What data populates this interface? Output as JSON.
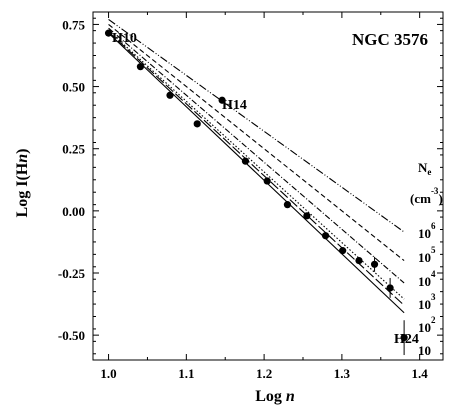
{
  "chart_data": {
    "type": "scatter",
    "title": "NGC 3576",
    "xlabel": "Log",
    "xlabel_italic": "n",
    "ylabel": "Log I(H",
    "ylabel_italic": "n",
    "ylabel_close": ")",
    "xlim": [
      0.98,
      1.43
    ],
    "ylim": [
      -0.6,
      0.8
    ],
    "grid": false,
    "x_ticks": [
      {
        "value": 1.0,
        "label": "1.0"
      },
      {
        "value": 1.1,
        "label": "1.1"
      },
      {
        "value": 1.2,
        "label": "1.2"
      },
      {
        "value": 1.3,
        "label": "1.3"
      },
      {
        "value": 1.4,
        "label": "1.4"
      }
    ],
    "y_ticks": [
      {
        "value": 0.75,
        "label": "0.75"
      },
      {
        "value": 0.5,
        "label": "0.50"
      },
      {
        "value": 0.25,
        "label": "0.25"
      },
      {
        "value": 0.0,
        "label": "0.00"
      },
      {
        "value": -0.25,
        "label": "-0.25"
      },
      {
        "value": -0.5,
        "label": "-0.50"
      }
    ],
    "points": [
      {
        "x": 1.0,
        "y": 0.715,
        "err": 0.0
      },
      {
        "x": 1.041,
        "y": 0.58,
        "err": 0.0
      },
      {
        "x": 1.079,
        "y": 0.465,
        "err": 0.0
      },
      {
        "x": 1.114,
        "y": 0.35,
        "err": 0.0
      },
      {
        "x": 1.146,
        "y": 0.445,
        "err": 0.0
      },
      {
        "x": 1.176,
        "y": 0.2,
        "err": 0.0
      },
      {
        "x": 1.204,
        "y": 0.12,
        "err": 0.0
      },
      {
        "x": 1.23,
        "y": 0.025,
        "err": 0.0
      },
      {
        "x": 1.255,
        "y": -0.02,
        "err": 0.0
      },
      {
        "x": 1.279,
        "y": -0.1,
        "err": 0.0
      },
      {
        "x": 1.301,
        "y": -0.16,
        "err": 0.0
      },
      {
        "x": 1.322,
        "y": -0.2,
        "err": 0.0
      },
      {
        "x": 1.342,
        "y": -0.215,
        "err": 0.03
      },
      {
        "x": 1.362,
        "y": -0.31,
        "err": 0.04
      },
      {
        "x": 1.38,
        "y": -0.51,
        "err": 0.07
      }
    ],
    "series": [
      {
        "name": "10^6",
        "dash": "8,2,1,2,1,2",
        "x": [
          1.0,
          1.38
        ],
        "y": [
          0.77,
          -0.085
        ]
      },
      {
        "name": "10^5",
        "dash": "5,3",
        "x": [
          1.0,
          1.38
        ],
        "y": [
          0.75,
          -0.2
        ]
      },
      {
        "name": "10^4",
        "dash": "6,2,1,2",
        "x": [
          1.0,
          1.38
        ],
        "y": [
          0.735,
          -0.29
        ]
      },
      {
        "name": "10^3",
        "dash": "1.5,2",
        "x": [
          1.0,
          1.38
        ],
        "y": [
          0.725,
          -0.355
        ]
      },
      {
        "name": "10^2",
        "dash": "10,3",
        "x": [
          1.0,
          1.38
        ],
        "y": [
          0.72,
          -0.38
        ]
      },
      {
        "name": "10",
        "dash": "",
        "x": [
          1.0,
          1.38
        ],
        "y": [
          0.715,
          -0.41
        ]
      }
    ],
    "annotations": {
      "h10": "H10",
      "h14": "H14",
      "h24": "H24"
    },
    "density_legend": {
      "title": "N",
      "title_sub": "e",
      "unit_open": "(cm",
      "unit_sup": "-3",
      "unit_close": ")",
      "entries": [
        {
          "base": "10",
          "exp": "6"
        },
        {
          "base": "10",
          "exp": "5"
        },
        {
          "base": "10",
          "exp": "4"
        },
        {
          "base": "10",
          "exp": "3"
        },
        {
          "base": "10",
          "exp": "2"
        },
        {
          "base": "10",
          "exp": ""
        }
      ]
    }
  }
}
